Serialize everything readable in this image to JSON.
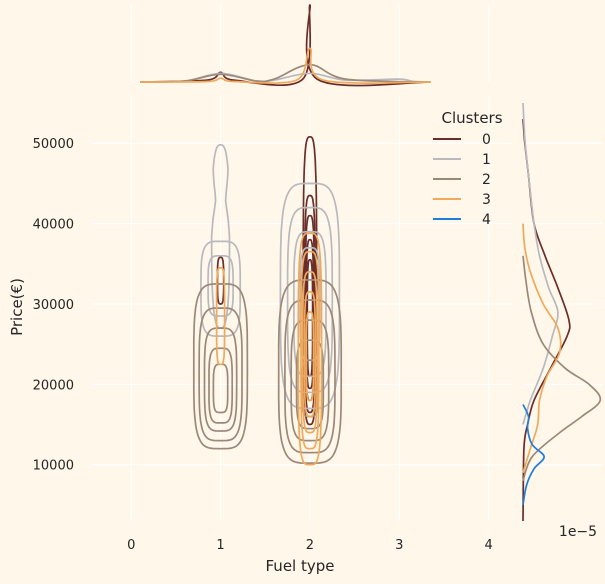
{
  "chart_data": {
    "type": "kde-jointplot",
    "title": "",
    "xlabel": "Fuel type",
    "ylabel": "Price(€)",
    "xlim": [
      -0.45,
      4.25
    ],
    "ylim": [
      3000,
      56000
    ],
    "x_ticks": [
      0,
      1,
      2,
      3,
      4
    ],
    "y_ticks": [
      10000,
      20000,
      30000,
      40000,
      50000
    ],
    "grid": true,
    "marginal_y_scale_label": "1e−5",
    "legend": {
      "title": "Clusters",
      "placement": "top-right",
      "entries": [
        "0",
        "1",
        "2",
        "3",
        "4"
      ]
    },
    "series": [
      {
        "name": "0",
        "color": "#6b2d2a",
        "contours": [
          {
            "x": 2.0,
            "ys": [
              15000,
              50800
            ],
            "hw": 0.075,
            "cap": 0.6
          },
          {
            "x": 2.0,
            "ys": [
              16500,
              43500
            ],
            "hw": 0.06,
            "cap": 0.6
          },
          {
            "x": 2.0,
            "ys": [
              18000,
              41000
            ],
            "hw": 0.05,
            "cap": 0.6
          },
          {
            "x": 2.0,
            "ys": [
              19500,
              38000
            ],
            "hw": 0.04,
            "cap": 0.6
          },
          {
            "x": 2.0,
            "ys": [
              21000,
              35500
            ],
            "hw": 0.03,
            "cap": 0.6
          },
          {
            "x": 1.0,
            "ys": [
              30000,
              35800
            ],
            "hw": 0.035,
            "cap": 0.6
          }
        ],
        "marginal_x": [
          [
            0.85,
            0.2
          ],
          [
            1.0,
            1.0
          ],
          [
            1.15,
            0.2
          ],
          [
            1.92,
            0.3
          ],
          [
            2.0,
            8.0
          ],
          [
            2.08,
            0.3
          ]
        ],
        "marginal_y": [
          [
            3000,
            0
          ],
          [
            12000,
            0.05
          ],
          [
            15000,
            0.25
          ],
          [
            18000,
            0.6
          ],
          [
            22000,
            1.5
          ],
          [
            26000,
            2.4
          ],
          [
            28000,
            2.5
          ],
          [
            32000,
            1.9
          ],
          [
            36000,
            1.2
          ],
          [
            40000,
            0.6
          ],
          [
            46000,
            0.3
          ],
          [
            50000,
            0.1
          ],
          [
            53000,
            0
          ]
        ]
      },
      {
        "name": "1",
        "color": "#b8b8bf",
        "contours": [
          {
            "x": 1.0,
            "ys": [
              27000,
              49800
            ],
            "hw": 0.1,
            "cap": 0.7,
            "waist": [
              43000,
              0.055
            ]
          },
          {
            "x": 1.0,
            "ys": [
              26000,
              37800
            ],
            "hw": 0.22,
            "cap": 0.5
          },
          {
            "x": 1.0,
            "ys": [
              28500,
              36000
            ],
            "hw": 0.14,
            "cap": 0.5
          },
          {
            "x": 2.0,
            "ys": [
              17000,
              45000
            ],
            "hw": 0.33,
            "cap": 0.5
          },
          {
            "x": 2.0,
            "ys": [
              19000,
              42000
            ],
            "hw": 0.25,
            "cap": 0.5
          },
          {
            "x": 2.0,
            "ys": [
              21000,
              39000
            ],
            "hw": 0.18,
            "cap": 0.5
          },
          {
            "x": 2.0,
            "ys": [
              23000,
              37000
            ],
            "hw": 0.11,
            "cap": 0.5
          }
        ],
        "marginal_x": [
          [
            0.6,
            0.1
          ],
          [
            1.0,
            0.9
          ],
          [
            1.4,
            0.1
          ],
          [
            1.6,
            0.2
          ],
          [
            2.0,
            0.9
          ],
          [
            2.4,
            0.2
          ],
          [
            3.0,
            0.3
          ],
          [
            3.15,
            0.05
          ]
        ],
        "marginal_y": [
          [
            15000,
            0
          ],
          [
            18000,
            0.4
          ],
          [
            22000,
            1.1
          ],
          [
            26000,
            1.6
          ],
          [
            29000,
            1.9
          ],
          [
            32000,
            1.4
          ],
          [
            36000,
            0.9
          ],
          [
            40000,
            0.6
          ],
          [
            45000,
            0.35
          ],
          [
            50000,
            0.12
          ],
          [
            55000,
            0
          ]
        ]
      },
      {
        "name": "2",
        "color": "#9c8878",
        "contours": [
          {
            "x": 1.0,
            "ys": [
              12000,
              32500
            ],
            "hw": 0.3,
            "cap": 0.5
          },
          {
            "x": 1.0,
            "ys": [
              13000,
              29500
            ],
            "hw": 0.24,
            "cap": 0.5
          },
          {
            "x": 1.0,
            "ys": [
              14200,
              27000
            ],
            "hw": 0.18,
            "cap": 0.5
          },
          {
            "x": 1.0,
            "ys": [
              15200,
              24500
            ],
            "hw": 0.13,
            "cap": 0.5
          },
          {
            "x": 1.0,
            "ys": [
              16500,
              22500
            ],
            "hw": 0.08,
            "cap": 0.5
          },
          {
            "x": 2.0,
            "ys": [
              10200,
              33000
            ],
            "hw": 0.35,
            "cap": 0.5
          },
          {
            "x": 2.0,
            "ys": [
              11500,
              30500
            ],
            "hw": 0.28,
            "cap": 0.5
          },
          {
            "x": 2.0,
            "ys": [
              13000,
              28000
            ],
            "hw": 0.21,
            "cap": 0.5
          },
          {
            "x": 2.0,
            "ys": [
              14500,
              25500
            ],
            "hw": 0.15,
            "cap": 0.5
          },
          {
            "x": 2.0,
            "ys": [
              16000,
              23000
            ],
            "hw": 0.09,
            "cap": 0.5
          }
        ],
        "marginal_x": [
          [
            0.6,
            0.1
          ],
          [
            1.0,
            0.8
          ],
          [
            1.4,
            0.1
          ],
          [
            1.6,
            0.3
          ],
          [
            2.0,
            1.8
          ],
          [
            2.4,
            0.3
          ]
        ],
        "marginal_y": [
          [
            8000,
            0
          ],
          [
            11000,
            0.5
          ],
          [
            14000,
            2.0
          ],
          [
            16000,
            3.2
          ],
          [
            18000,
            4.2
          ],
          [
            20000,
            3.6
          ],
          [
            22000,
            2.3
          ],
          [
            25000,
            1.1
          ],
          [
            29000,
            0.45
          ],
          [
            33000,
            0.15
          ],
          [
            36000,
            0
          ]
        ]
      },
      {
        "name": "3",
        "color": "#f0a95b",
        "contours": [
          {
            "x": 2.0,
            "ys": [
              10000,
              38800
            ],
            "hw": 0.13,
            "cap": 0.5
          },
          {
            "x": 2.0,
            "ys": [
              12000,
              36500
            ],
            "hw": 0.1,
            "cap": 0.5
          },
          {
            "x": 2.0,
            "ys": [
              14000,
              34000
            ],
            "hw": 0.08,
            "cap": 0.5
          },
          {
            "x": 2.0,
            "ys": [
              16000,
              31500
            ],
            "hw": 0.06,
            "cap": 0.5
          },
          {
            "x": 2.0,
            "ys": [
              18000,
              29000
            ],
            "hw": 0.04,
            "cap": 0.5
          },
          {
            "x": 1.0,
            "ys": [
              22500,
              34500
            ],
            "hw": 0.045,
            "cap": 0.5
          }
        ],
        "marginal_x": [
          [
            0.85,
            0.05
          ],
          [
            1.0,
            0.4
          ],
          [
            1.15,
            0.05
          ],
          [
            1.85,
            0.2
          ],
          [
            2.0,
            3.5
          ],
          [
            2.15,
            0.2
          ]
        ],
        "marginal_y": [
          [
            9000,
            0
          ],
          [
            12000,
            0.4
          ],
          [
            15000,
            0.8
          ],
          [
            18000,
            0.9
          ],
          [
            21000,
            1.3
          ],
          [
            24000,
            2.0
          ],
          [
            27000,
            1.9
          ],
          [
            30000,
            1.1
          ],
          [
            34000,
            0.4
          ],
          [
            37000,
            0.1
          ],
          [
            40000,
            0
          ]
        ]
      },
      {
        "name": "4",
        "color": "#1f7fd8",
        "contours": [],
        "marginal_x": [],
        "marginal_y": [
          [
            5000,
            0
          ],
          [
            7500,
            0.2
          ],
          [
            9500,
            0.6
          ],
          [
            11000,
            1.15
          ],
          [
            12500,
            0.5
          ],
          [
            14500,
            0.25
          ],
          [
            16000,
            0.3
          ],
          [
            17500,
            0
          ]
        ]
      }
    ]
  }
}
